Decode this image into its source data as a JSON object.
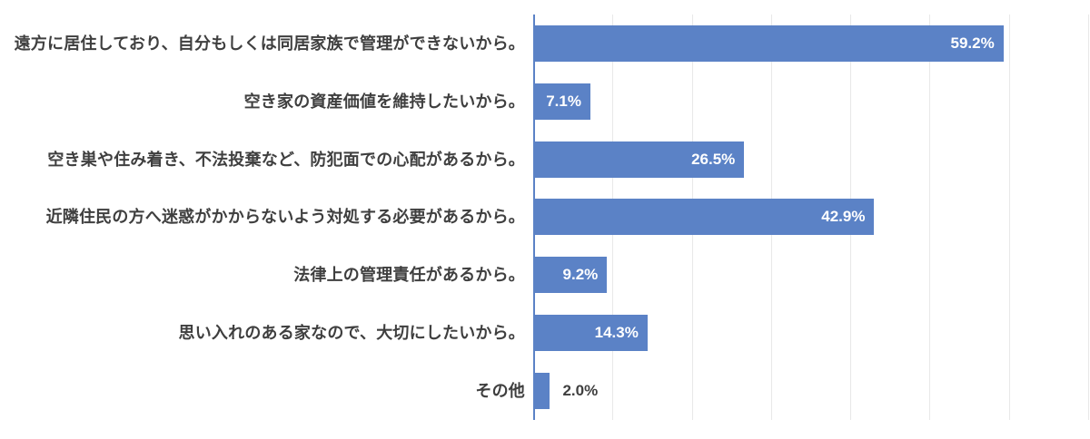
{
  "chart_data": {
    "type": "bar",
    "orientation": "horizontal",
    "title": "",
    "xlabel": "",
    "ylabel": "",
    "categories": [
      "遠方に居住しており、自分もしくは同居家族で管理ができないから。",
      "空き家の資産価値を維持したいから。",
      "空き巣や住み着き、不法投棄など、防犯面での心配があるから。",
      "近隣住民の方へ迷惑がかからないよう対処する必要があるから。",
      "法律上の管理責任があるから。",
      "思い入れのある家なので、大切にしたいから。",
      "その他"
    ],
    "values": [
      59.2,
      7.1,
      26.5,
      42.9,
      9.2,
      14.3,
      2.0
    ],
    "value_labels": [
      "59.2%",
      "7.1%",
      "26.5%",
      "42.9%",
      "9.2%",
      "14.3%",
      "2.0%"
    ],
    "xlim": [
      0,
      70
    ],
    "grid_step": 10,
    "grid": true,
    "legend": false,
    "colors": {
      "bar": "#5B82C6",
      "axis_line": "#5B82C6",
      "gridline": "#E8E8E8",
      "category_label": "#3F3F3F",
      "value_label_inside": "#FFFFFF",
      "value_label_outside": "#3F3F3F",
      "background": "#FFFFFF"
    }
  }
}
